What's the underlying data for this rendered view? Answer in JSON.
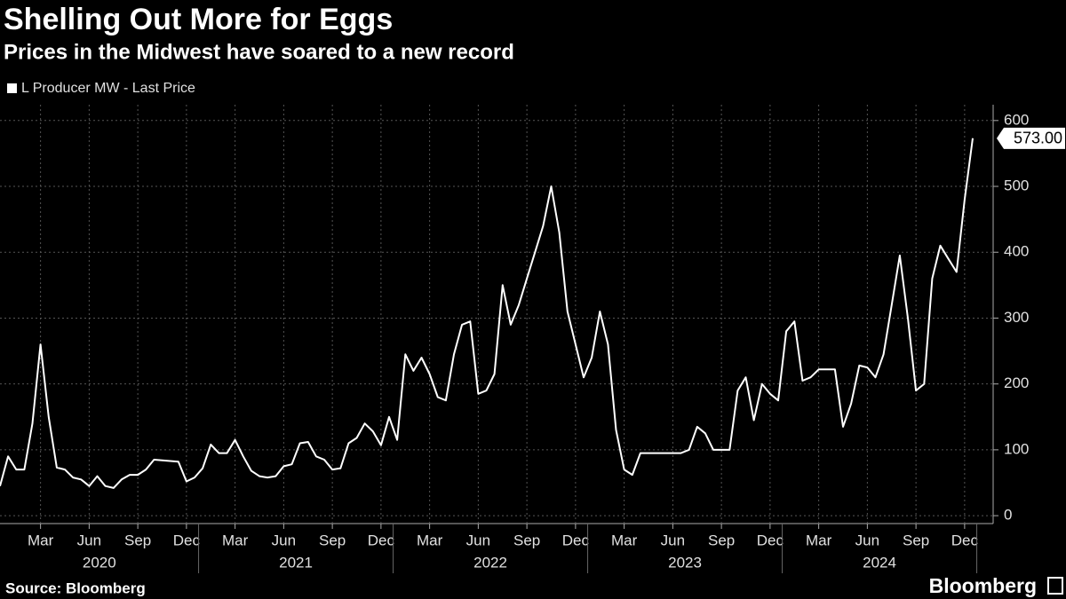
{
  "chart_data": {
    "type": "line",
    "title": "Shelling Out More for Eggs",
    "subtitle": "Prices in the Midwest have soared to a new record",
    "source": "Source: Bloomberg",
    "brand": "Bloomberg",
    "categories": [
      null,
      null,
      null,
      null,
      null,
      "Mar",
      null,
      null,
      null,
      null,
      null,
      "Jun",
      null,
      null,
      null,
      null,
      null,
      "Sep",
      null,
      null,
      null,
      null,
      null,
      "Dec",
      null,
      null,
      null,
      null,
      null,
      "Mar",
      null,
      null,
      null,
      null,
      null,
      "Jun",
      null,
      null,
      null,
      null,
      null,
      "Sep",
      null,
      null,
      null,
      null,
      null,
      "Dec",
      null,
      null,
      null,
      null,
      null,
      "Mar",
      null,
      null,
      null,
      null,
      null,
      "Jun",
      null,
      null,
      null,
      null,
      null,
      "Sep",
      null,
      null,
      null,
      null,
      null,
      "Dec",
      null,
      null,
      null,
      null,
      null,
      "Mar",
      null,
      null,
      null,
      null,
      null,
      "Jun",
      null,
      null,
      null,
      null,
      null,
      "Sep",
      null,
      null,
      null,
      null,
      null,
      "Dec",
      null,
      null,
      null,
      null,
      null,
      "Mar",
      null,
      null,
      null,
      null,
      null,
      "Jun",
      null,
      null,
      null,
      null,
      null,
      "Sep",
      null,
      null,
      null,
      null,
      null,
      "Dec",
      null
    ],
    "years": [
      "2020",
      "2021",
      "2022",
      "2023",
      "2024"
    ],
    "series": [
      {
        "name": "L Producer MW - Last Price",
        "color": "#ffffff",
        "values": [
          45,
          90,
          70,
          70,
          140,
          260,
          150,
          73,
          70,
          58,
          55,
          45,
          60,
          45,
          42,
          55,
          62,
          62,
          70,
          85,
          84,
          83,
          82,
          52,
          58,
          72,
          108,
          95,
          95,
          115,
          90,
          68,
          60,
          58,
          60,
          75,
          78,
          110,
          112,
          90,
          85,
          70,
          72,
          110,
          118,
          140,
          128,
          107,
          150,
          115,
          245,
          220,
          240,
          215,
          180,
          175,
          245,
          290,
          295,
          185,
          190,
          215,
          350,
          290,
          320,
          360,
          400,
          440,
          500,
          430,
          310,
          260,
          210,
          240,
          310,
          260,
          130,
          70,
          62,
          95,
          95,
          95,
          95,
          95,
          95,
          100,
          135,
          125,
          100,
          100,
          100,
          190,
          210,
          145,
          200,
          185,
          175,
          280,
          295,
          205,
          210,
          222,
          222,
          222,
          135,
          170,
          228,
          225,
          210,
          245,
          320,
          395,
          300,
          190,
          200,
          360,
          410,
          390,
          370,
          480,
          573
        ],
        "value_labels": [
          null,
          null,
          null,
          null,
          null,
          null,
          null,
          null,
          null,
          null,
          null,
          null,
          null,
          null,
          null,
          null,
          null,
          null,
          null,
          null,
          null,
          null,
          null,
          null,
          null,
          null,
          null,
          null,
          null,
          null,
          null,
          null,
          null,
          null,
          null,
          null,
          null,
          null,
          null,
          null,
          null,
          null,
          null,
          null,
          null,
          null,
          null,
          null,
          null,
          null,
          null,
          null,
          null,
          null,
          null,
          null,
          null,
          null,
          null,
          null,
          null,
          null,
          null,
          null,
          null,
          null,
          null,
          null,
          null,
          null,
          null,
          null,
          null,
          null,
          null,
          null,
          null,
          null,
          null,
          null,
          null,
          null,
          null,
          null,
          null,
          null,
          null,
          null,
          null,
          null,
          null,
          null,
          null,
          null,
          null,
          null,
          null,
          null,
          null,
          null,
          null,
          null,
          null,
          null,
          null,
          null,
          null,
          null,
          null,
          null,
          null,
          null,
          null,
          null,
          null,
          null,
          null,
          null,
          null,
          null,
          "573.00"
        ]
      }
    ],
    "ylim": [
      -12,
      624
    ],
    "yticks": [
      0,
      100,
      200,
      300,
      400,
      500,
      600
    ],
    "grid": true
  }
}
